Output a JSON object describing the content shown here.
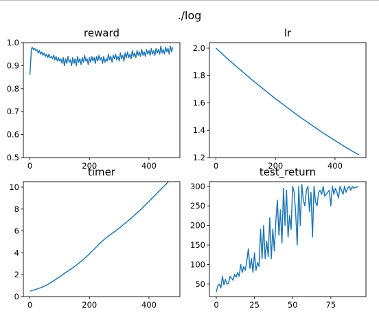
{
  "figure": {
    "suptitle": "./log"
  },
  "colors": {
    "line": "#1f77b4",
    "axes": "#000000",
    "background": "#ffffff"
  },
  "chart_data": [
    {
      "type": "line",
      "title": "reward",
      "xlabel": "",
      "ylabel": "",
      "xlim": [
        -22,
        504
      ],
      "ylim": [
        0.5,
        1.0
      ],
      "xticks": [
        0,
        200,
        400
      ],
      "xtick_labels": [
        "0",
        "200",
        "400"
      ],
      "yticks": [
        0.5,
        0.6,
        0.7,
        0.8,
        0.9,
        1.0
      ],
      "ytick_labels": [
        "0.5",
        "0.6",
        "0.7",
        "0.8",
        "0.9",
        "1.0"
      ],
      "grid": false,
      "series": [
        {
          "x": [
            0,
            5,
            8,
            12,
            16,
            20,
            24,
            28,
            32,
            36,
            40,
            44,
            48,
            52,
            56,
            60,
            64,
            68,
            72,
            76,
            80,
            84,
            88,
            92,
            96,
            100,
            104,
            108,
            112,
            116,
            120,
            124,
            128,
            132,
            136,
            140,
            144,
            148,
            152,
            156,
            160,
            164,
            168,
            172,
            176,
            180,
            184,
            188,
            192,
            196,
            200,
            204,
            208,
            212,
            216,
            220,
            224,
            228,
            232,
            236,
            240,
            244,
            248,
            252,
            256,
            260,
            264,
            268,
            272,
            276,
            280,
            284,
            288,
            292,
            296,
            300,
            304,
            308,
            312,
            316,
            320,
            324,
            328,
            332,
            336,
            340,
            344,
            348,
            352,
            356,
            360,
            364,
            368,
            372,
            376,
            380,
            384,
            388,
            392,
            396,
            400,
            404,
            408,
            412,
            416,
            420,
            424,
            428,
            432,
            436,
            440,
            444,
            448,
            452,
            456,
            460,
            464,
            468,
            472,
            476,
            480
          ],
          "y": [
            0.86,
            0.97,
            0.98,
            0.97,
            0.975,
            0.965,
            0.97,
            0.955,
            0.965,
            0.95,
            0.96,
            0.945,
            0.955,
            0.94,
            0.95,
            0.935,
            0.95,
            0.935,
            0.94,
            0.93,
            0.945,
            0.925,
            0.94,
            0.92,
            0.935,
            0.92,
            0.93,
            0.91,
            0.935,
            0.9,
            0.93,
            0.91,
            0.94,
            0.915,
            0.925,
            0.9,
            0.935,
            0.91,
            0.93,
            0.9,
            0.94,
            0.915,
            0.93,
            0.905,
            0.935,
            0.915,
            0.945,
            0.92,
            0.93,
            0.905,
            0.935,
            0.915,
            0.94,
            0.92,
            0.935,
            0.91,
            0.94,
            0.92,
            0.945,
            0.925,
            0.935,
            0.91,
            0.94,
            0.915,
            0.93,
            0.92,
            0.95,
            0.925,
            0.94,
            0.915,
            0.945,
            0.93,
            0.95,
            0.925,
            0.94,
            0.92,
            0.955,
            0.93,
            0.945,
            0.92,
            0.955,
            0.935,
            0.96,
            0.935,
            0.95,
            0.93,
            0.965,
            0.94,
            0.955,
            0.935,
            0.965,
            0.945,
            0.96,
            0.94,
            0.97,
            0.945,
            0.96,
            0.94,
            0.97,
            0.95,
            0.965,
            0.945,
            0.975,
            0.95,
            0.965,
            0.945,
            0.975,
            0.955,
            0.97,
            0.95,
            0.985,
            0.955,
            0.97,
            0.95,
            0.98,
            0.96,
            0.975,
            0.95,
            0.985,
            0.96,
            0.98
          ]
        }
      ]
    },
    {
      "type": "line",
      "title": "lr",
      "xlabel": "",
      "ylabel": "",
      "xlim": [
        -22,
        504
      ],
      "ylim": [
        1.2,
        2.04
      ],
      "xticks": [
        0,
        200,
        400
      ],
      "xtick_labels": [
        "0",
        "200",
        "400"
      ],
      "yticks": [
        1.2,
        1.4,
        1.6,
        1.8,
        2.0
      ],
      "ytick_labels": [
        "1.2",
        "1.4",
        "1.6",
        "1.8",
        "2.0"
      ],
      "grid": false,
      "series": [
        {
          "x": [
            0,
            40,
            80,
            120,
            160,
            200,
            240,
            280,
            320,
            360,
            400,
            440,
            480
          ],
          "y": [
            2.0,
            1.92,
            1.845,
            1.77,
            1.7,
            1.63,
            1.565,
            1.5,
            1.44,
            1.38,
            1.325,
            1.27,
            1.22
          ]
        }
      ]
    },
    {
      "type": "line",
      "title": "timer",
      "xlabel": "",
      "ylabel": "",
      "xlim": [
        -22,
        504
      ],
      "ylim": [
        0,
        10.5
      ],
      "xticks": [
        0,
        200,
        400
      ],
      "xtick_labels": [
        "0",
        "200",
        "400"
      ],
      "yticks": [
        0,
        2,
        4,
        6,
        8,
        10
      ],
      "ytick_labels": [
        "0",
        "2",
        "4",
        "6",
        "8",
        "10"
      ],
      "grid": false,
      "series": [
        {
          "x": [
            0,
            20,
            40,
            60,
            80,
            100,
            120,
            140,
            160,
            180,
            200,
            220,
            240,
            260,
            280,
            300,
            320,
            340,
            360,
            380,
            400,
            420,
            440,
            460,
            480
          ],
          "y": [
            0.5,
            0.65,
            0.85,
            1.1,
            1.45,
            1.8,
            2.2,
            2.55,
            2.95,
            3.4,
            3.9,
            4.45,
            5.0,
            5.45,
            5.85,
            6.25,
            6.7,
            7.15,
            7.65,
            8.15,
            8.7,
            9.25,
            9.8,
            10.35,
            10.9
          ]
        }
      ]
    },
    {
      "type": "line",
      "title": "test_return",
      "xlabel": "",
      "ylabel": "",
      "xlim": [
        -4.5,
        98
      ],
      "ylim": [
        18,
        312
      ],
      "xticks": [
        0,
        25,
        50,
        75
      ],
      "xtick_labels": [
        "0",
        "25",
        "50",
        "75"
      ],
      "yticks": [
        50,
        100,
        150,
        200,
        250,
        300
      ],
      "ytick_labels": [
        "50",
        "100",
        "150",
        "200",
        "250",
        "300"
      ],
      "grid": false,
      "series": [
        {
          "x": [
            0,
            1,
            2,
            3,
            4,
            5,
            6,
            7,
            8,
            9,
            10,
            11,
            12,
            13,
            14,
            15,
            16,
            17,
            18,
            19,
            20,
            21,
            22,
            23,
            24,
            25,
            26,
            27,
            28,
            29,
            30,
            31,
            32,
            33,
            34,
            35,
            36,
            37,
            38,
            39,
            40,
            41,
            42,
            43,
            44,
            45,
            46,
            47,
            48,
            49,
            50,
            51,
            52,
            53,
            54,
            55,
            56,
            57,
            58,
            59,
            60,
            61,
            62,
            63,
            64,
            65,
            66,
            67,
            68,
            69,
            70,
            71,
            72,
            73,
            74,
            75,
            76,
            77,
            78,
            79,
            80,
            81,
            82,
            83,
            84,
            85,
            86,
            87,
            88,
            89,
            90,
            91,
            92,
            93
          ],
          "y": [
            30,
            45,
            50,
            40,
            70,
            48,
            62,
            50,
            52,
            70,
            65,
            60,
            75,
            68,
            80,
            70,
            100,
            80,
            95,
            85,
            110,
            140,
            90,
            115,
            80,
            130,
            85,
            105,
            95,
            190,
            115,
            200,
            115,
            160,
            120,
            220,
            115,
            190,
            135,
            210,
            265,
            175,
            240,
            155,
            295,
            200,
            290,
            170,
            225,
            190,
            300,
            285,
            230,
            150,
            300,
            200,
            305,
            265,
            250,
            290,
            300,
            235,
            285,
            170,
            300,
            260,
            250,
            285,
            290,
            280,
            300,
            275,
            280,
            285,
            290,
            250,
            300,
            280,
            295,
            285,
            270,
            300,
            290,
            280,
            300,
            285,
            295,
            300,
            290,
            300,
            295,
            298,
            298,
            300
          ]
        }
      ]
    }
  ]
}
